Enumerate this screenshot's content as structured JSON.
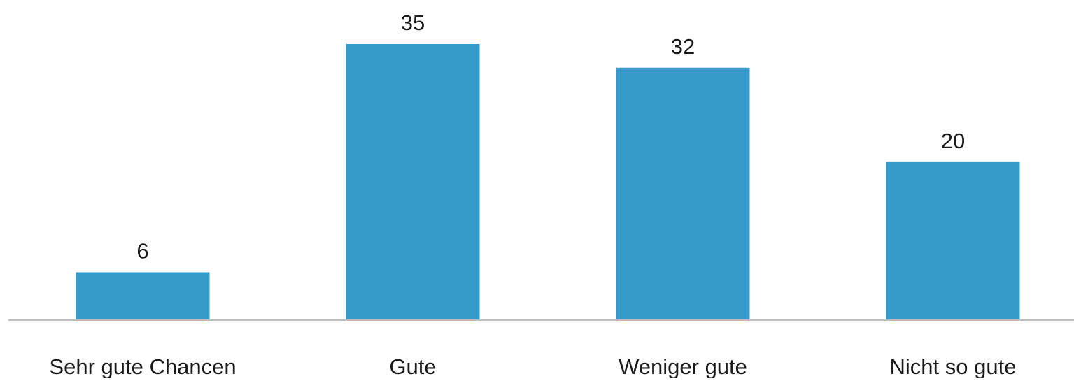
{
  "chart_data": {
    "type": "bar",
    "title": "",
    "xlabel": "",
    "ylabel": "",
    "categories": [
      "Sehr gute Chancen",
      "Gute",
      "Weniger gute",
      "Nicht so gute"
    ],
    "values": [
      6,
      35,
      32,
      20
    ],
    "data_labels": [
      "6",
      "35",
      "32",
      "20"
    ],
    "ylim": [
      0,
      35
    ],
    "grid": false,
    "legend": "none",
    "colors": {
      "bar": "#349BCB",
      "axis": "#BDBDBD",
      "text": "#1A1A1A"
    }
  }
}
